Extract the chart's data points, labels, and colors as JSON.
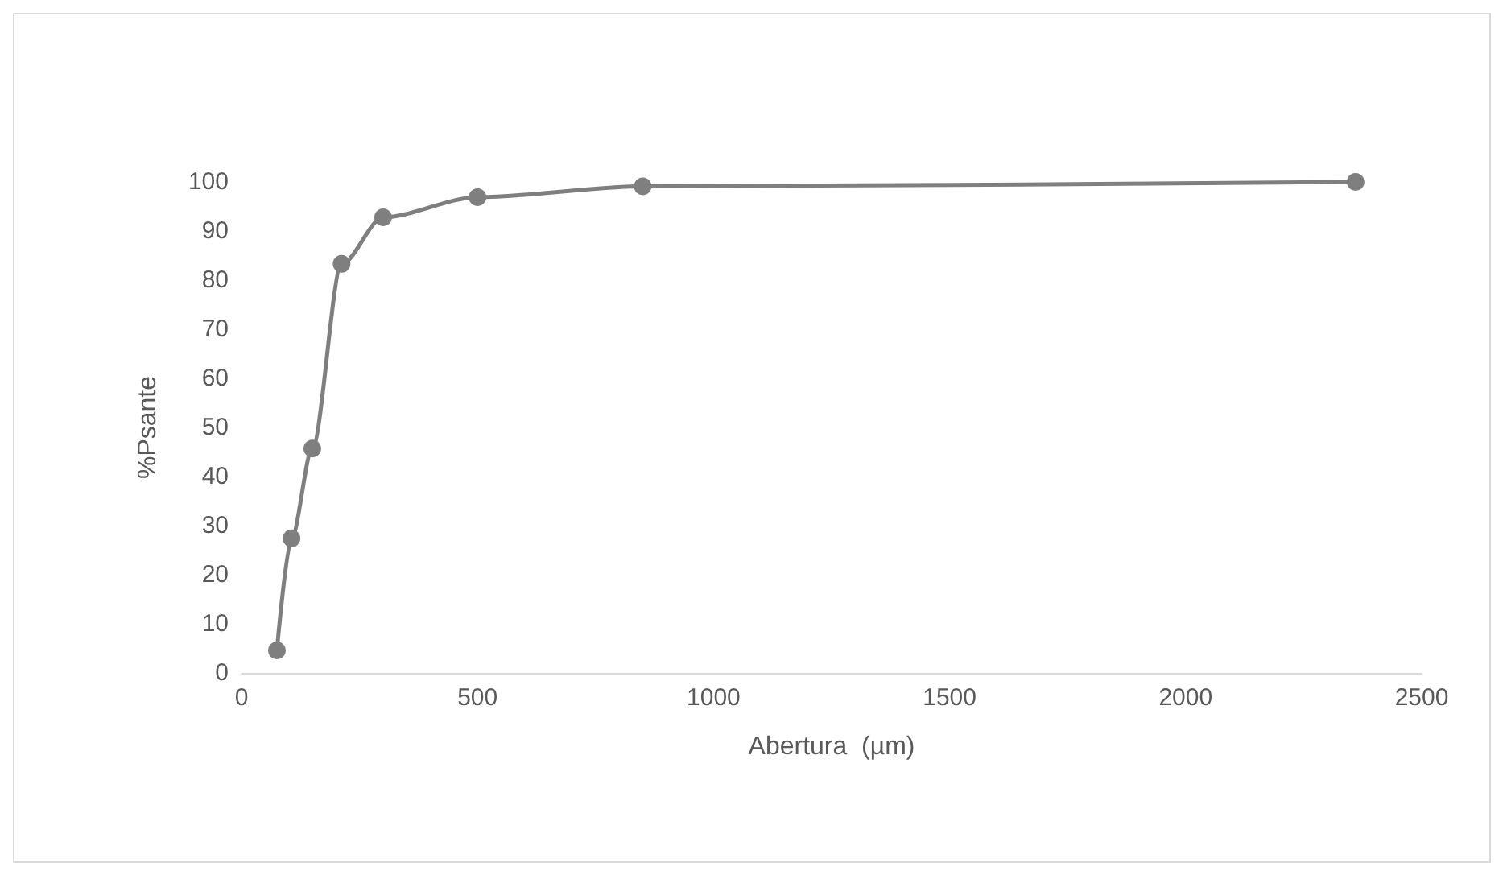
{
  "chart_data": {
    "type": "line",
    "xlabel": "Abertura  (µm)",
    "ylabel": "%Psante",
    "x": [
      75,
      106,
      150,
      212,
      300,
      500,
      850,
      2360
    ],
    "series": [
      {
        "color": "#7f7f7f",
        "values": [
          4.6,
          27.4,
          45.7,
          83.3,
          92.8,
          96.9,
          99.1,
          100
        ]
      }
    ],
    "xlim": [
      0,
      2500
    ],
    "xticks": [
      0,
      500,
      1000,
      1500,
      2000,
      2500
    ],
    "ylim": [
      0,
      100
    ],
    "yticks": [
      0,
      10,
      20,
      30,
      40,
      50,
      60,
      70,
      80,
      90,
      100
    ],
    "grid": false,
    "marker": "circle",
    "line_style": "solid"
  }
}
